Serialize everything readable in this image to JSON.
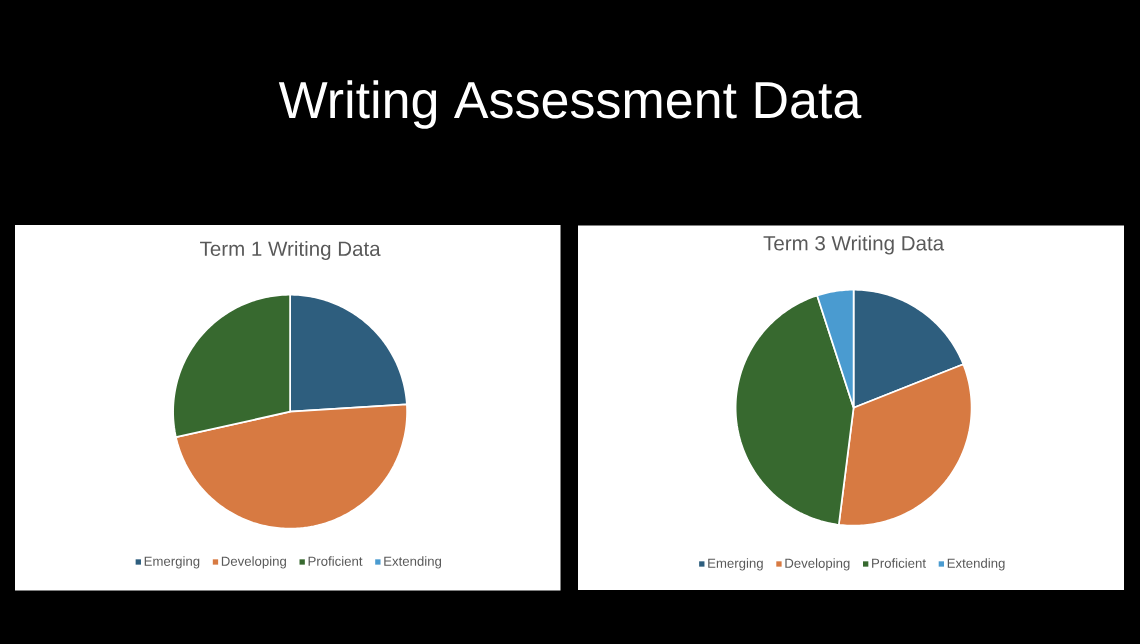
{
  "chart_data": [
    {
      "type": "pie",
      "title": "Term 1 Writing Data",
      "annotations": [
        "Writing Assessment Data"
      ],
      "categories": [
        "Emerging",
        "Developing",
        "Proficient",
        "Extending"
      ],
      "values": [
        24,
        47.5,
        28.5,
        0
      ],
      "colors": [
        "#2e5e7e",
        "#d77a42",
        "#37692f",
        "#4a9bd0"
      ],
      "legend": "bottom"
    },
    {
      "type": "pie",
      "title": "Term 3 Writing Data",
      "categories": [
        "Emerging",
        "Developing",
        "Proficient",
        "Extending"
      ],
      "values": [
        19,
        33,
        43,
        5
      ],
      "colors": [
        "#2e5e7e",
        "#d77a42",
        "#37692f",
        "#4a9bd0"
      ],
      "legend": "bottom"
    }
  ]
}
